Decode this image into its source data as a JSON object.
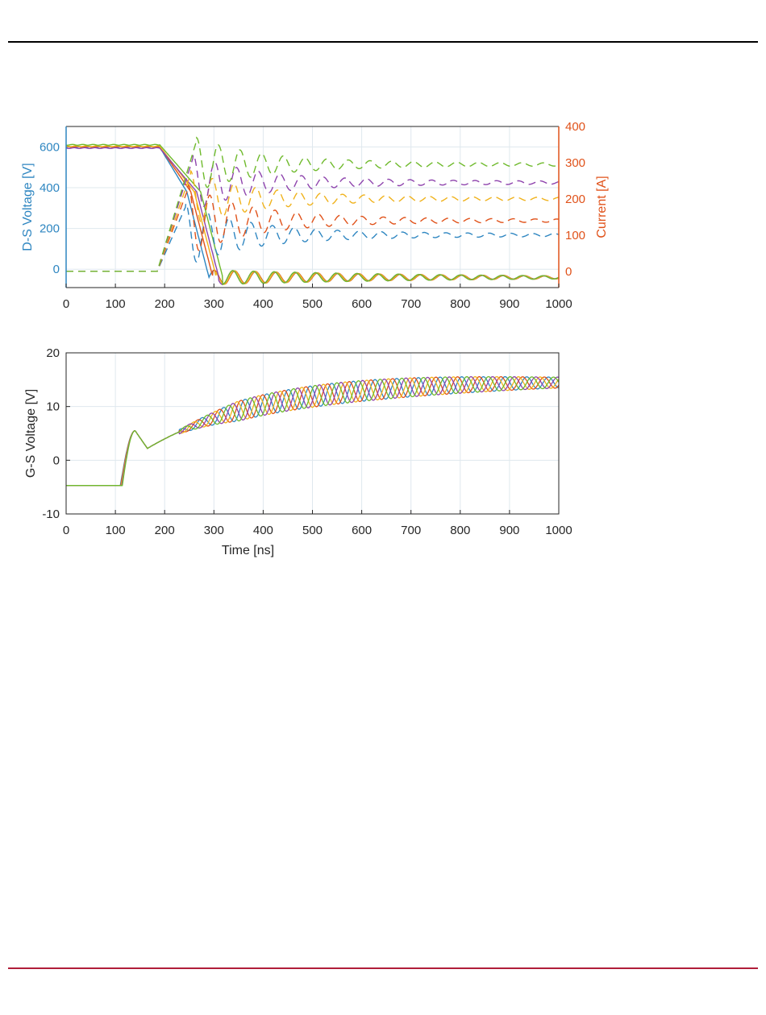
{
  "colors": {
    "left_axis": "#2e86c1",
    "right_axis": "#e0521a",
    "axis": "#262626",
    "grid": "#dfe8ee",
    "series": [
      "#2e86c1",
      "#e0521a",
      "#f0b21c",
      "#8e44ad",
      "#6fba2c"
    ]
  },
  "chart_data": [
    {
      "type": "line",
      "xlim": [
        0,
        1000
      ],
      "xticks": [
        "0",
        "100",
        "200",
        "300",
        "400",
        "500",
        "600",
        "700",
        "800",
        "900",
        "1000"
      ],
      "xtick_values": [
        0,
        100,
        200,
        300,
        400,
        500,
        600,
        700,
        800,
        900,
        1000
      ],
      "ylabel_left": "D-S Voltage [V]",
      "ylim_left": [
        -90,
        700
      ],
      "yticks_left": [
        "0",
        "200",
        "400",
        "600"
      ],
      "ytick_values_left": [
        0,
        200,
        400,
        600
      ],
      "ylabel_right": "Current [A]",
      "ylim_right": [
        -45,
        400
      ],
      "yticks_right": [
        "0",
        "100",
        "200",
        "300",
        "400"
      ],
      "ytick_values_right": [
        0,
        100,
        200,
        300,
        400
      ],
      "grid": true,
      "voltage_series_solid": [
        {
          "v_on": 598,
          "fall_start": 190,
          "fall_end": 290,
          "ring_amp": 35,
          "ring_phase": 0.0
        },
        {
          "v_on": 600,
          "fall_start": 190,
          "fall_end": 298,
          "ring_amp": 35,
          "ring_phase": 1.2
        },
        {
          "v_on": 603,
          "fall_start": 190,
          "fall_end": 305,
          "ring_amp": 35,
          "ring_phase": 2.4
        },
        {
          "v_on": 594,
          "fall_start": 190,
          "fall_end": 310,
          "ring_amp": 35,
          "ring_phase": 3.6
        },
        {
          "v_on": 610,
          "fall_start": 190,
          "fall_end": 318,
          "ring_amp": 35,
          "ring_phase": 4.8
        }
      ],
      "current_series_dashed": [
        {
          "steady": 105,
          "peak": 180,
          "rise_end": 243
        },
        {
          "steady": 145,
          "peak": 230,
          "rise_end": 248
        },
        {
          "steady": 205,
          "peak": 270,
          "rise_end": 253
        },
        {
          "steady": 250,
          "peak": 315,
          "rise_end": 258
        },
        {
          "steady": 300,
          "peak": 362,
          "rise_end": 265
        }
      ]
    },
    {
      "type": "line",
      "xlim": [
        0,
        1000
      ],
      "xticks": [
        "0",
        "100",
        "200",
        "300",
        "400",
        "500",
        "600",
        "700",
        "800",
        "900",
        "1000"
      ],
      "xtick_values": [
        0,
        100,
        200,
        300,
        400,
        500,
        600,
        700,
        800,
        900,
        1000
      ],
      "xlabel": "Time [ns]",
      "ylabel": "G-S Voltage [V]",
      "ylim": [
        -10,
        20
      ],
      "yticks": [
        "-10",
        "0",
        "10",
        "20"
      ],
      "ytick_values": [
        -10,
        0,
        10,
        20
      ],
      "grid": true,
      "gate_series": [
        {
          "phase": 0.0,
          "start": 110
        },
        {
          "phase": 1.2,
          "start": 111
        },
        {
          "phase": 2.4,
          "start": 112
        },
        {
          "phase": 3.6,
          "start": 113
        },
        {
          "phase": 4.8,
          "start": 114
        }
      ],
      "gate_off_level": -4.7,
      "gate_miller_peak": 5.5,
      "gate_final_level": 14.8
    }
  ]
}
